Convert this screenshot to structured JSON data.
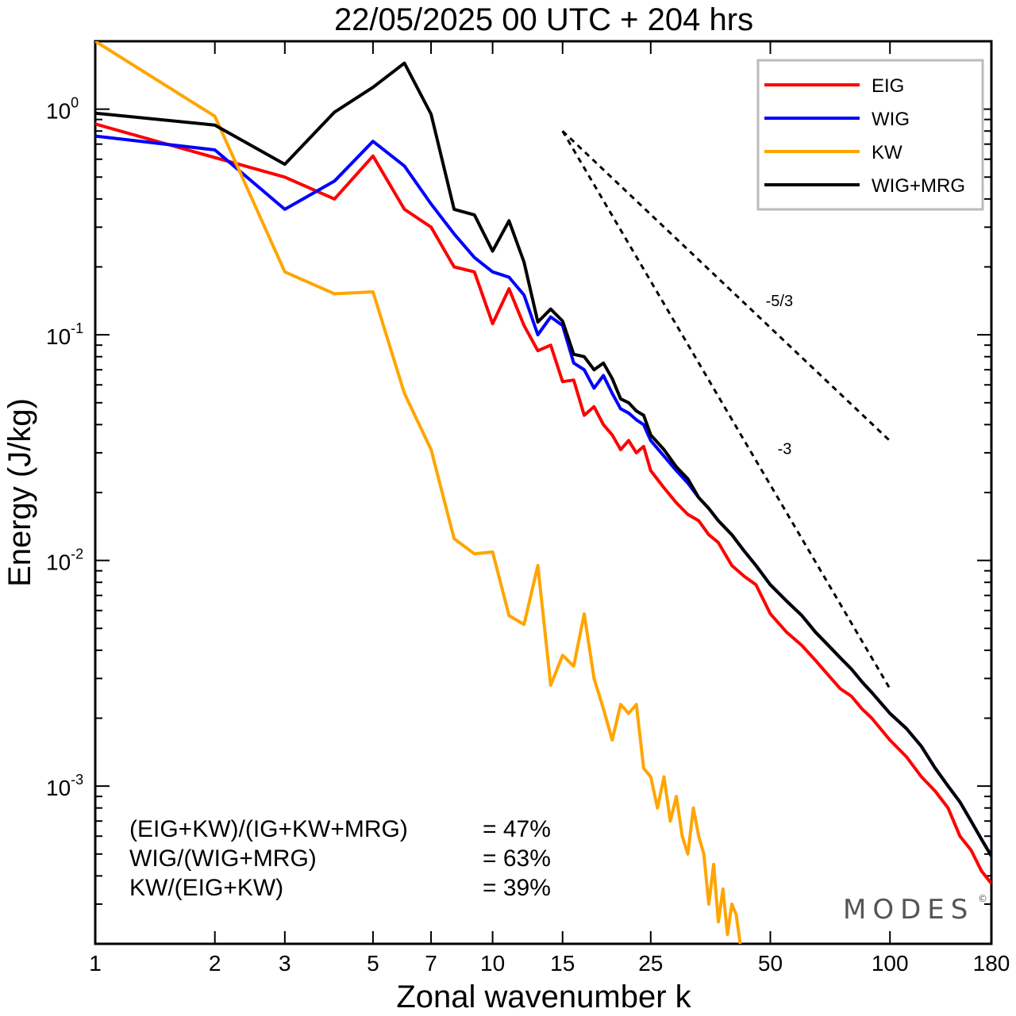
{
  "chart_data": {
    "type": "line",
    "title": "22/05/2025  00 UTC  + 204 hrs",
    "xlabel": "Zonal wavenumber k",
    "ylabel": "Energy (J/kg)",
    "xscale": "log",
    "yscale": "log",
    "xlim": [
      1,
      180
    ],
    "ylim": [
      0.0002,
      2.0
    ],
    "x_ticks": [
      1,
      2,
      3,
      5,
      7,
      10,
      15,
      25,
      50,
      100,
      180
    ],
    "y_ticks": [
      {
        "value": 1,
        "base": "10",
        "exp": "0"
      },
      {
        "value": 0.1,
        "base": "10",
        "exp": "-1"
      },
      {
        "value": 0.01,
        "base": "10",
        "exp": "-2"
      },
      {
        "value": 0.001,
        "base": "10",
        "exp": "-3"
      }
    ],
    "legend_position": "top-right",
    "colors": {
      "EIG": "#ff0000",
      "WIG": "#0000ff",
      "KW": "#ffa500",
      "WIG+MRG": "#000000"
    },
    "series": [
      {
        "name": "EIG",
        "color": "#ff0000",
        "points": [
          [
            1,
            0.86
          ],
          [
            2,
            0.61
          ],
          [
            3,
            0.5
          ],
          [
            4,
            0.4
          ],
          [
            5,
            0.62
          ],
          [
            6,
            0.36
          ],
          [
            7,
            0.3
          ],
          [
            8,
            0.2
          ],
          [
            9,
            0.19
          ],
          [
            10,
            0.112
          ],
          [
            11,
            0.16
          ],
          [
            12,
            0.11
          ],
          [
            13,
            0.085
          ],
          [
            14,
            0.09
          ],
          [
            15,
            0.062
          ],
          [
            16,
            0.063
          ],
          [
            17,
            0.044
          ],
          [
            18,
            0.048
          ],
          [
            19,
            0.04
          ],
          [
            20,
            0.036
          ],
          [
            21,
            0.031
          ],
          [
            22,
            0.034
          ],
          [
            23,
            0.03
          ],
          [
            24,
            0.032
          ],
          [
            25,
            0.025
          ],
          [
            27,
            0.021
          ],
          [
            29,
            0.018
          ],
          [
            31,
            0.016
          ],
          [
            33,
            0.015
          ],
          [
            35,
            0.013
          ],
          [
            37,
            0.012
          ],
          [
            40,
            0.0095
          ],
          [
            43,
            0.0085
          ],
          [
            46,
            0.0078
          ],
          [
            50,
            0.0058
          ],
          [
            55,
            0.0048
          ],
          [
            60,
            0.0042
          ],
          [
            65,
            0.0036
          ],
          [
            70,
            0.0031
          ],
          [
            75,
            0.0027
          ],
          [
            80,
            0.0025
          ],
          [
            85,
            0.0022
          ],
          [
            90,
            0.002
          ],
          [
            100,
            0.0016
          ],
          [
            110,
            0.00135
          ],
          [
            120,
            0.0011
          ],
          [
            130,
            0.00095
          ],
          [
            140,
            0.0008
          ],
          [
            150,
            0.0006
          ],
          [
            160,
            0.00052
          ],
          [
            170,
            0.00042
          ],
          [
            180,
            0.00037
          ]
        ]
      },
      {
        "name": "WIG",
        "color": "#0000ff",
        "points": [
          [
            1,
            0.76
          ],
          [
            2,
            0.66
          ],
          [
            3,
            0.36
          ],
          [
            4,
            0.48
          ],
          [
            5,
            0.72
          ],
          [
            6,
            0.56
          ],
          [
            7,
            0.38
          ],
          [
            8,
            0.28
          ],
          [
            9,
            0.22
          ],
          [
            10,
            0.19
          ],
          [
            11,
            0.18
          ],
          [
            12,
            0.15
          ],
          [
            13,
            0.1
          ],
          [
            14,
            0.12
          ],
          [
            15,
            0.11
          ],
          [
            16,
            0.075
          ],
          [
            17,
            0.07
          ],
          [
            18,
            0.058
          ],
          [
            19,
            0.066
          ],
          [
            20,
            0.055
          ],
          [
            21,
            0.047
          ],
          [
            22,
            0.045
          ],
          [
            23,
            0.042
          ],
          [
            24,
            0.04
          ],
          [
            25,
            0.034
          ],
          [
            27,
            0.029
          ],
          [
            29,
            0.025
          ],
          [
            31,
            0.022
          ],
          [
            33,
            0.019
          ],
          [
            35,
            0.017
          ],
          [
            37,
            0.015
          ],
          [
            40,
            0.013
          ],
          [
            43,
            0.011
          ],
          [
            46,
            0.0095
          ],
          [
            50,
            0.0078
          ],
          [
            55,
            0.0066
          ],
          [
            60,
            0.0057
          ],
          [
            65,
            0.0048
          ],
          [
            70,
            0.0042
          ],
          [
            75,
            0.0037
          ],
          [
            80,
            0.0033
          ],
          [
            85,
            0.0029
          ],
          [
            90,
            0.0026
          ],
          [
            100,
            0.0021
          ],
          [
            110,
            0.0018
          ],
          [
            120,
            0.0015
          ],
          [
            130,
            0.0012
          ],
          [
            140,
            0.001
          ],
          [
            150,
            0.00085
          ],
          [
            160,
            0.0007
          ],
          [
            170,
            0.00058
          ],
          [
            180,
            0.00049
          ]
        ]
      },
      {
        "name": "KW",
        "color": "#ffa500",
        "points": [
          [
            1,
            2.0
          ],
          [
            2,
            0.93
          ],
          [
            3,
            0.19
          ],
          [
            4,
            0.152
          ],
          [
            5,
            0.155
          ],
          [
            6,
            0.055
          ],
          [
            7,
            0.031
          ],
          [
            8,
            0.0125
          ],
          [
            9,
            0.0107
          ],
          [
            10,
            0.0109
          ],
          [
            11,
            0.0057
          ],
          [
            12,
            0.0052
          ],
          [
            13,
            0.0095
          ],
          [
            14,
            0.0028
          ],
          [
            15,
            0.0038
          ],
          [
            16,
            0.0034
          ],
          [
            17,
            0.0058
          ],
          [
            18,
            0.003
          ],
          [
            19,
            0.0022
          ],
          [
            20,
            0.0016
          ],
          [
            21,
            0.0023
          ],
          [
            22,
            0.0021
          ],
          [
            23,
            0.0023
          ],
          [
            24,
            0.0012
          ],
          [
            25,
            0.0011
          ],
          [
            26,
            0.0008
          ],
          [
            27,
            0.0011
          ],
          [
            28,
            0.0007
          ],
          [
            29,
            0.0009
          ],
          [
            30,
            0.0006
          ],
          [
            31,
            0.0005
          ],
          [
            32,
            0.0008
          ],
          [
            33,
            0.0006
          ],
          [
            34,
            0.0005
          ],
          [
            35,
            0.0003
          ],
          [
            36,
            0.00045
          ],
          [
            37,
            0.00025
          ],
          [
            38,
            0.00035
          ],
          [
            39,
            0.00022
          ],
          [
            40,
            0.0003
          ],
          [
            41,
            0.00027
          ],
          [
            42,
            0.0002
          ]
        ]
      },
      {
        "name": "WIG+MRG",
        "color": "#000000",
        "points": [
          [
            1,
            0.96
          ],
          [
            2,
            0.85
          ],
          [
            3,
            0.57
          ],
          [
            4,
            0.97
          ],
          [
            5,
            1.25
          ],
          [
            6,
            1.6
          ],
          [
            7,
            0.95
          ],
          [
            8,
            0.36
          ],
          [
            9,
            0.34
          ],
          [
            10,
            0.235
          ],
          [
            11,
            0.32
          ],
          [
            12,
            0.21
          ],
          [
            13,
            0.114
          ],
          [
            14,
            0.13
          ],
          [
            15,
            0.115
          ],
          [
            16,
            0.082
          ],
          [
            17,
            0.08
          ],
          [
            18,
            0.07
          ],
          [
            19,
            0.075
          ],
          [
            20,
            0.064
          ],
          [
            21,
            0.052
          ],
          [
            22,
            0.05
          ],
          [
            23,
            0.046
          ],
          [
            24,
            0.044
          ],
          [
            25,
            0.036
          ],
          [
            27,
            0.031
          ],
          [
            29,
            0.026
          ],
          [
            31,
            0.023
          ],
          [
            33,
            0.019
          ],
          [
            35,
            0.017
          ],
          [
            37,
            0.015
          ],
          [
            40,
            0.013
          ],
          [
            43,
            0.011
          ],
          [
            46,
            0.0095
          ],
          [
            50,
            0.0078
          ],
          [
            55,
            0.0066
          ],
          [
            60,
            0.0057
          ],
          [
            65,
            0.0048
          ],
          [
            70,
            0.0042
          ],
          [
            75,
            0.0037
          ],
          [
            80,
            0.0033
          ],
          [
            85,
            0.0029
          ],
          [
            90,
            0.0026
          ],
          [
            100,
            0.0021
          ],
          [
            110,
            0.0018
          ],
          [
            120,
            0.0015
          ],
          [
            130,
            0.0012
          ],
          [
            140,
            0.001
          ],
          [
            150,
            0.00085
          ],
          [
            160,
            0.0007
          ],
          [
            170,
            0.00058
          ],
          [
            180,
            0.00049
          ]
        ]
      }
    ],
    "reference_lines": [
      {
        "label": "-5/3",
        "slope": -1.6667,
        "x": [
          15,
          100
        ],
        "y0": 0.8
      },
      {
        "label": "-3",
        "slope": -3,
        "x": [
          15,
          100
        ],
        "y0": 0.8
      }
    ],
    "annotations": [
      {
        "text": "(EIG+KW)/(IG+KW+MRG)",
        "value": "= 47%"
      },
      {
        "text": "WIG/(WIG+MRG)",
        "value": "= 63%"
      },
      {
        "text": "KW/(EIG+KW)",
        "value": "= 39%"
      }
    ],
    "grid": false
  },
  "watermark": {
    "text": "MODES",
    "mark": "©"
  }
}
